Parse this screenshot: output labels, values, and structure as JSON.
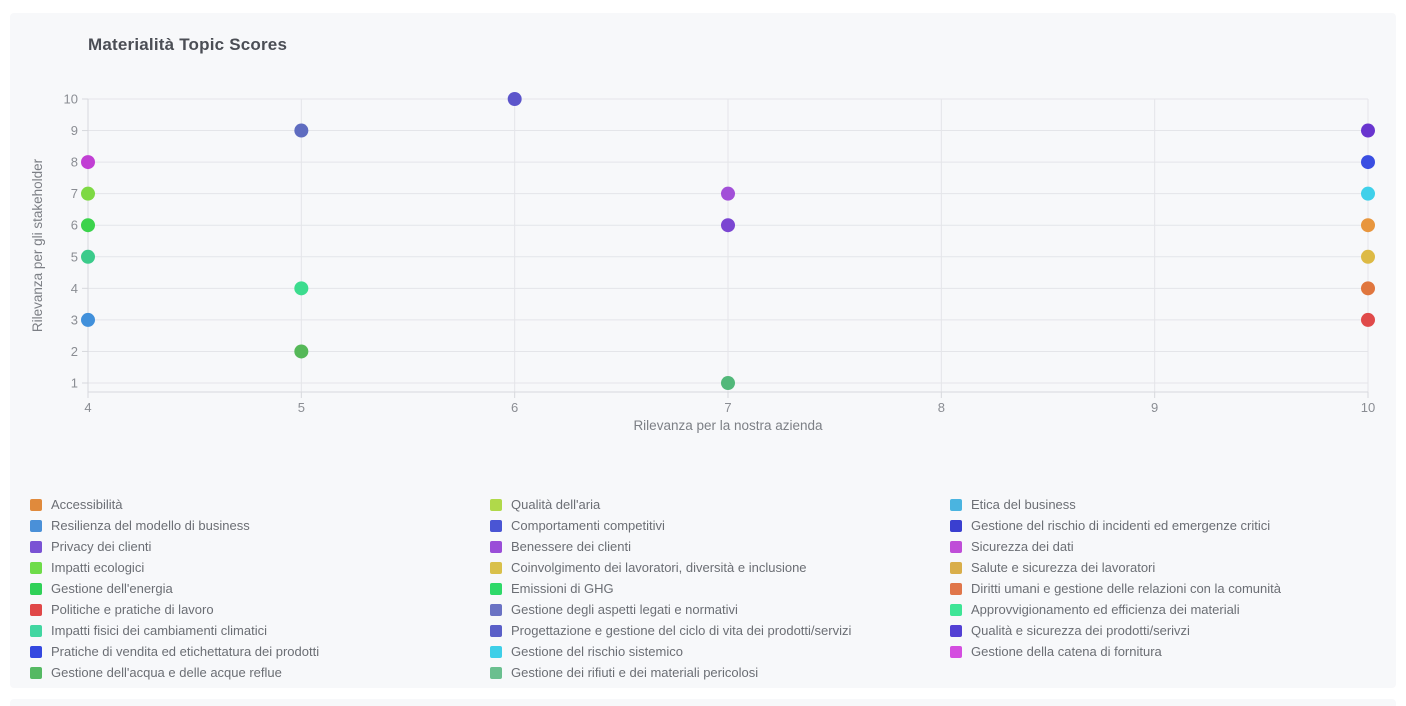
{
  "card": {
    "title": "Materialità Topic Scores"
  },
  "colors": {
    "card_bg": "#f7f8fa",
    "grid": "#e4e5e9",
    "axis_border": "#d7d8dd",
    "tick_text": "#8a8d93",
    "axis_title_text": "#7c7f85",
    "legend_text": "#6b6e74",
    "title_text": "#4b4e55"
  },
  "chart_data": {
    "type": "scatter",
    "title": "Materialità Topic Scores",
    "xlabel": "Rilevanza per la nostra azienda",
    "ylabel": "Rilevanza per gli stakeholder",
    "xlim": [
      4,
      10
    ],
    "ylim": [
      1,
      10
    ],
    "x_ticks": [
      4,
      5,
      6,
      7,
      8,
      9,
      10
    ],
    "y_ticks": [
      1,
      2,
      3,
      4,
      5,
      6,
      7,
      8,
      9,
      10
    ],
    "grid": true,
    "legend_position": "bottom",
    "legend_columns": 3,
    "points": [
      {
        "x": 4,
        "y": 8,
        "color": "#c13fd4"
      },
      {
        "x": 4,
        "y": 7,
        "color": "#7ed944"
      },
      {
        "x": 4,
        "y": 6,
        "color": "#3bd34c"
      },
      {
        "x": 4,
        "y": 5,
        "color": "#3bcb8b"
      },
      {
        "x": 4,
        "y": 3,
        "color": "#4190db"
      },
      {
        "x": 5,
        "y": 9,
        "color": "#5f6cc0"
      },
      {
        "x": 5,
        "y": 4,
        "color": "#3cdc8e"
      },
      {
        "x": 5,
        "y": 2,
        "color": "#55b858"
      },
      {
        "x": 6,
        "y": 10,
        "color": "#5c55cb"
      },
      {
        "x": 7,
        "y": 7,
        "color": "#a250d8"
      },
      {
        "x": 7,
        "y": 6,
        "color": "#7b46d2"
      },
      {
        "x": 7,
        "y": 1,
        "color": "#52b87a"
      },
      {
        "x": 10,
        "y": 9,
        "color": "#6935cf"
      },
      {
        "x": 10,
        "y": 8,
        "color": "#3a4ee2"
      },
      {
        "x": 10,
        "y": 7,
        "color": "#3fd0ea"
      },
      {
        "x": 10,
        "y": 6,
        "color": "#e8963e"
      },
      {
        "x": 10,
        "y": 5,
        "color": "#ddba45"
      },
      {
        "x": 10,
        "y": 4,
        "color": "#e0763e"
      },
      {
        "x": 10,
        "y": 3,
        "color": "#e04a4a"
      }
    ],
    "legend_columns_items": [
      [
        {
          "label": "Accessibilità",
          "color": "#e08a3c"
        },
        {
          "label": "Resilienza del modello di business",
          "color": "#4a90d8"
        },
        {
          "label": "Privacy dei clienti",
          "color": "#7a52d4"
        },
        {
          "label": "Impatti ecologici",
          "color": "#6edc49"
        },
        {
          "label": "Gestione dell'energia",
          "color": "#30d158"
        },
        {
          "label": "Politiche e pratiche di lavoro",
          "color": "#e04848"
        },
        {
          "label": "Impatti fisici dei cambiamenti climatici",
          "color": "#41d6a1"
        },
        {
          "label": "Pratiche di vendita ed etichettatura dei prodotti",
          "color": "#3448e0"
        },
        {
          "label": "Gestione dell'acqua e delle acque reflue",
          "color": "#55b963"
        }
      ],
      [
        {
          "label": "Qualità dell'aria",
          "color": "#b0d94a"
        },
        {
          "label": "Comportamenti competitivi",
          "color": "#4a55d4"
        },
        {
          "label": "Benessere dei clienti",
          "color": "#9a4ed8"
        },
        {
          "label": "Coinvolgimento dei lavoratori, diversità e inclusione",
          "color": "#d9c04a"
        },
        {
          "label": "Emissioni di GHG",
          "color": "#2ed969"
        },
        {
          "label": "Gestione degli aspetti legati e normativi",
          "color": "#6a72c4"
        },
        {
          "label": "Progettazione e gestione del ciclo di vita dei prodotti/servizi",
          "color": "#5a5fc8"
        },
        {
          "label": "Gestione del rischio sistemico",
          "color": "#3ecfe8"
        },
        {
          "label": "Gestione dei rifiuti e dei materiali pericolosi",
          "color": "#6abf8f"
        }
      ],
      [
        {
          "label": "Etica del business",
          "color": "#4ab4e0"
        },
        {
          "label": "Gestione del rischio di incidenti ed emergenze critici",
          "color": "#3a3fd0"
        },
        {
          "label": "Sicurezza dei dati",
          "color": "#bf4ed8"
        },
        {
          "label": "Salute e sicurezza dei lavoratori",
          "color": "#d9ae4a"
        },
        {
          "label": "Diritti umani e gestione delle relazioni con la comunità",
          "color": "#e0764a"
        },
        {
          "label": "Approvvigionamento ed efficienza dei materiali",
          "color": "#3ee596"
        },
        {
          "label": "Qualità e sicurezza dei prodotti/serivzi",
          "color": "#5340d4"
        },
        {
          "label": "Gestione della catena di fornitura",
          "color": "#d44ee0"
        }
      ]
    ]
  }
}
